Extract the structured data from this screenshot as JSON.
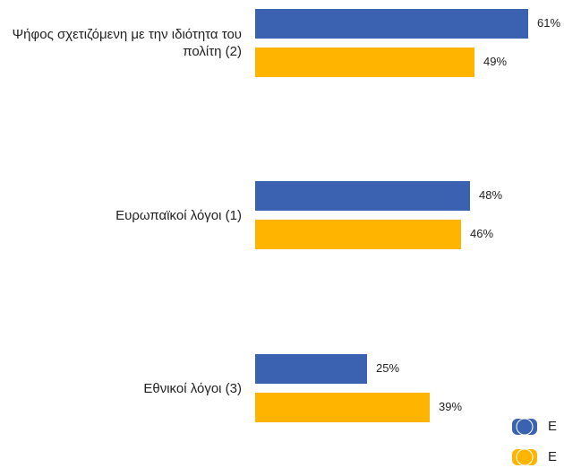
{
  "chart_data": {
    "type": "bar",
    "orientation": "horizontal",
    "categories": [
      "Ψήφος σχετιζόμενη με την ιδιότητα του πολίτη (2)",
      "Ευρωπαϊκοί λόγοι (1)",
      "Εθνικοί λόγοι (3)"
    ],
    "series": [
      {
        "name": "E",
        "color": "#3a62b0",
        "values": [
          61,
          48,
          25
        ],
        "value_labels": [
          "61%",
          "48%",
          "25%"
        ]
      },
      {
        "name": "E",
        "color": "#ffb400",
        "values": [
          49,
          46,
          39
        ],
        "value_labels": [
          "49%",
          "46%",
          "39%"
        ]
      }
    ]
  }
}
